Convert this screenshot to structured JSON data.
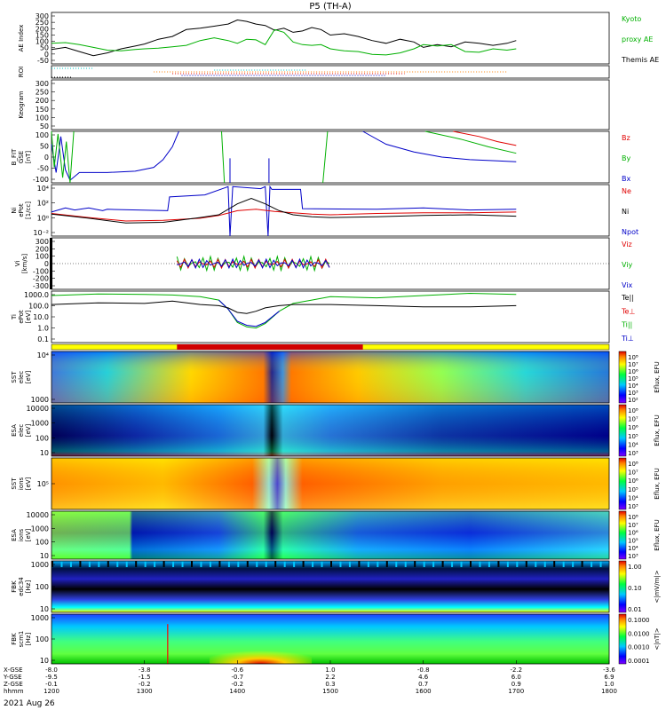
{
  "title": "P5 (TH-A)",
  "date_label": "2021 Aug 26",
  "colors": {
    "black": "#000000",
    "green": "#00b000",
    "red": "#e00000",
    "blue": "#0000c8",
    "orange": "#ff8000",
    "cyan": "#00c8c8",
    "bar_red": "#d00000",
    "bar_yellow": "#ffff00"
  },
  "chart_data": [
    {
      "type": "line",
      "panel": "ae",
      "ylabel": [
        "AE Index"
      ],
      "yticks": [
        "300",
        "250",
        "200",
        "150",
        "100",
        "50",
        "0",
        "-50"
      ],
      "ylim": [
        -50,
        325
      ],
      "legend": [
        {
          "text": "Kyoto",
          "color": "green"
        },
        {
          "text": "proxy AE",
          "color": "green"
        },
        {
          "text": "Themis AE",
          "color": "black"
        }
      ],
      "x": [
        1200,
        1215,
        1230,
        1245,
        1260,
        1275,
        1290,
        1300,
        1315,
        1330,
        1345,
        1360,
        1375,
        1390,
        1400,
        1410,
        1420,
        1430,
        1440,
        1450,
        1460,
        1470,
        1480,
        1490,
        1500,
        1515,
        1530,
        1545,
        1560,
        1575,
        1590,
        1600,
        1615,
        1630,
        1645,
        1660,
        1675,
        1690,
        1700
      ],
      "series": [
        {
          "color": "black",
          "values": [
            55,
            70,
            40,
            10,
            30,
            60,
            80,
            95,
            130,
            150,
            200,
            210,
            225,
            240,
            270,
            260,
            240,
            230,
            195,
            210,
            180,
            190,
            215,
            200,
            160,
            170,
            150,
            120,
            100,
            130,
            110,
            70,
            90,
            75,
            110,
            100,
            85,
            100,
            120
          ]
        },
        {
          "color": "green",
          "values": [
            100,
            105,
            90,
            70,
            50,
            45,
            55,
            60,
            65,
            75,
            85,
            120,
            140,
            120,
            100,
            130,
            125,
            90,
            200,
            180,
            110,
            90,
            85,
            90,
            60,
            45,
            40,
            20,
            15,
            30,
            60,
            90,
            80,
            90,
            40,
            35,
            60,
            50,
            60
          ]
        }
      ]
    },
    {
      "type": "scatter",
      "panel": "roi",
      "ylabel": [
        "ROI"
      ],
      "dotted_rows": [
        {
          "color": "cyan",
          "x_start": 1200,
          "x_end": 1245
        },
        {
          "color": "cyan",
          "x_start": 1375,
          "x_end": 1475
        },
        {
          "color": "orange",
          "x_start": 1310,
          "x_end": 1690
        },
        {
          "color": "red",
          "x_start": 1330,
          "x_end": 1580
        },
        {
          "color": "blue",
          "x_start": 1340,
          "x_end": 1560
        },
        {
          "color": "black",
          "x_start": 1200,
          "x_end": 1222
        }
      ]
    },
    {
      "type": "heatmap",
      "panel": "keogram",
      "ylabel": [
        "Keogram"
      ],
      "yticks": [
        "300",
        "250",
        "200",
        "150",
        "100",
        "50"
      ]
    },
    {
      "type": "line",
      "panel": "bfield",
      "ylabel": [
        "B_FIT",
        "GSE",
        "[nT]"
      ],
      "yticks": [
        "100",
        "50",
        "0",
        "-50",
        "-100"
      ],
      "ylim": [
        -100,
        100
      ],
      "legend": [
        {
          "text": "Bz",
          "color": "red"
        },
        {
          "text": "By",
          "color": "green"
        },
        {
          "text": "Bx",
          "color": "blue"
        }
      ],
      "series": [
        {
          "color": "blue",
          "x": [
            1200,
            1205,
            1210,
            1215,
            1220,
            1230,
            1260,
            1290,
            1310,
            1320,
            1330,
            1337
          ],
          "values": [
            50,
            -60,
            80,
            -50,
            -90,
            -60,
            -60,
            -55,
            -40,
            -10,
            40,
            100
          ]
        },
        {
          "color": "blue",
          "x": [
            1535,
            1560,
            1590,
            1620,
            1650,
            1680,
            1700
          ],
          "values": [
            100,
            50,
            20,
            0,
            -10,
            -15,
            -18
          ]
        },
        {
          "color": "green",
          "x": [
            1200,
            1203,
            1207,
            1212,
            1216,
            1220,
            1224
          ],
          "values": [
            100,
            -40,
            90,
            -80,
            60,
            -100,
            100
          ]
        },
        {
          "color": "green",
          "x": [
            1602,
            1640,
            1670,
            1700
          ],
          "values": [
            100,
            70,
            40,
            15
          ]
        },
        {
          "color": "red",
          "x": [
            1632,
            1660,
            1680,
            1700
          ],
          "values": [
            100,
            80,
            60,
            45
          ]
        },
        {
          "color": "green",
          "x": [
            1383,
            1386
          ],
          "values": [
            100,
            -100
          ]
        },
        {
          "color": "green",
          "x": [
            1492,
            1497
          ],
          "values": [
            -100,
            100
          ]
        },
        {
          "color": "blue",
          "x": [
            1392,
            1392
          ],
          "values": [
            -5,
            -100
          ]
        },
        {
          "color": "blue",
          "x": [
            1434,
            1434
          ],
          "values": [
            -5,
            -100
          ]
        }
      ]
    },
    {
      "type": "line",
      "panel": "density",
      "ylabel": [
        "Ni",
        "ePot",
        "[1/cc]"
      ],
      "yticks": [
        "10⁴",
        "10²",
        "10⁰",
        "10⁻²"
      ],
      "ylim": [
        -2.5,
        5
      ],
      "legend": [
        {
          "text": "Ne",
          "color": "red"
        },
        {
          "text": "Ni",
          "color": "black"
        },
        {
          "text": "Npot",
          "color": "blue"
        }
      ],
      "series": [
        {
          "color": "blue",
          "x": [
            1200,
            1215,
            1225,
            1240,
            1255,
            1260,
            1325,
            1327,
            1365,
            1390,
            1392,
            1395,
            1425,
            1430,
            1433,
            1435,
            1437,
            1468,
            1470,
            1550,
            1600,
            1650,
            1700
          ],
          "values": [
            1,
            1.6,
            1.3,
            1.6,
            1.2,
            1.4,
            1.2,
            3.2,
            3.5,
            4.7,
            -2.5,
            4.7,
            4.4,
            4.7,
            -2.5,
            4.7,
            4.3,
            4.3,
            1.5,
            1.4,
            1.6,
            1.3,
            1.4
          ]
        },
        {
          "color": "red",
          "x": [
            1200,
            1240,
            1280,
            1320,
            1360,
            1380,
            1400,
            1420,
            1440,
            1460,
            1480,
            1500,
            1550,
            1600,
            1650,
            1700
          ],
          "values": [
            0.8,
            0.2,
            -0.3,
            -0.2,
            0.1,
            0.5,
            1.2,
            1.4,
            1.1,
            0.9,
            0.7,
            0.6,
            0.8,
            0.9,
            0.9,
            1.0
          ]
        },
        {
          "color": "black",
          "x": [
            1200,
            1240,
            1280,
            1320,
            1360,
            1380,
            1400,
            1415,
            1430,
            1445,
            1460,
            1480,
            1500,
            1550,
            1600,
            1650,
            1700
          ],
          "values": [
            0.7,
            0.1,
            -0.6,
            -0.5,
            0.2,
            0.6,
            2.2,
            3.0,
            2.2,
            1.2,
            0.6,
            0.3,
            0.2,
            0.3,
            0.5,
            0.6,
            0.4
          ]
        }
      ]
    },
    {
      "type": "line",
      "panel": "velocity",
      "ylabel": [
        "Vi",
        "[km/s]"
      ],
      "yticks": [
        "300",
        "200",
        "100",
        "0",
        "-100",
        "-200",
        "-300"
      ],
      "ylim": [
        -330,
        330
      ],
      "legend": [
        {
          "text": "Viz",
          "color": "red"
        },
        {
          "text": "Viy",
          "color": "green"
        },
        {
          "text": "Vix",
          "color": "blue"
        }
      ],
      "x_start": 1335,
      "x_end": 1500
    },
    {
      "type": "line",
      "panel": "temperature",
      "ylabel": [
        "Ti",
        "ePot",
        "[eV]"
      ],
      "yticks": [
        "1000.0",
        "100.0",
        "10.0",
        "1.0",
        "0.1"
      ],
      "ylim": [
        -1.2,
        3.4
      ],
      "legend": [
        {
          "text": "Te||",
          "color": "black"
        },
        {
          "text": "Te⊥",
          "color": "red"
        },
        {
          "text": "Ti||",
          "color": "green"
        },
        {
          "text": "Ti⊥",
          "color": "blue"
        }
      ],
      "series": [
        {
          "color": "green",
          "x": [
            1200,
            1250,
            1300,
            1330,
            1360,
            1380,
            1390,
            1400,
            1410,
            1420,
            1430,
            1445,
            1460,
            1480,
            1500,
            1550,
            1600,
            1650,
            1700
          ],
          "values": [
            3.0,
            3.15,
            3.1,
            3.05,
            2.9,
            2.6,
            1.8,
            0.6,
            0.2,
            0.1,
            0.5,
            1.6,
            2.3,
            2.6,
            2.9,
            2.8,
            3.0,
            3.2,
            3.1
          ]
        },
        {
          "color": "blue",
          "x": [
            1380,
            1390,
            1400,
            1410,
            1420,
            1430,
            1445
          ],
          "values": [
            2.6,
            1.8,
            0.7,
            0.35,
            0.25,
            0.6,
            1.6
          ]
        },
        {
          "color": "black",
          "x": [
            1200,
            1250,
            1300,
            1330,
            1360,
            1380,
            1390,
            1400,
            1410,
            1420,
            1430,
            1445,
            1460,
            1480,
            1500,
            1550,
            1600,
            1650,
            1700
          ],
          "values": [
            2.2,
            2.35,
            2.3,
            2.5,
            2.2,
            2.1,
            1.9,
            1.5,
            1.4,
            1.6,
            1.9,
            2.1,
            2.2,
            2.2,
            2.2,
            2.1,
            2.0,
            2.0,
            2.1
          ]
        }
      ]
    },
    {
      "type": "heatmap",
      "panel": "sst_e",
      "ylabel": [
        "SST",
        "elec",
        "[eV]"
      ],
      "yticks": [
        "10⁴",
        "1000"
      ]
    },
    {
      "type": "heatmap",
      "panel": "esa_e",
      "ylabel": [
        "ESA",
        "elec",
        "[eV]"
      ],
      "yticks": [
        "10000",
        "1000",
        "100",
        "10"
      ]
    },
    {
      "type": "heatmap",
      "panel": "sst_i",
      "ylabel": [
        "SST",
        "ions",
        "[eV]"
      ],
      "yticks": [
        "10⁵"
      ]
    },
    {
      "type": "heatmap",
      "panel": "esa_i",
      "ylabel": [
        "ESA",
        "ions",
        "[eV]"
      ],
      "yticks": [
        "10000",
        "1000",
        "100",
        "10"
      ]
    },
    {
      "type": "heatmap",
      "panel": "fbk_e",
      "ylabel": [
        "FBK",
        "edc34",
        "[Hz]"
      ],
      "yticks": [
        "1000",
        "100",
        "10"
      ]
    },
    {
      "type": "heatmap",
      "panel": "fbk_b",
      "ylabel": [
        "FBK",
        "scm1",
        "[Hz]"
      ],
      "yticks": [
        "1000",
        "100",
        "10"
      ]
    }
  ],
  "colorbars": [
    {
      "ticks": [
        "10⁸",
        "10⁷",
        "10⁶",
        "10⁵",
        "10⁴",
        "10³",
        "10²"
      ],
      "label": "Eflux, EFU"
    },
    {
      "ticks": [
        "10⁸",
        "10⁷",
        "10⁶",
        "10⁵",
        "10⁴",
        "10³"
      ],
      "label": "Eflux, EFU"
    },
    {
      "ticks": [
        "10⁸",
        "10⁷",
        "10⁶",
        "10⁵",
        "10⁴",
        "10³"
      ],
      "label": "Eflux, EFU"
    },
    {
      "ticks": [
        "10⁸",
        "10⁷",
        "10⁶",
        "10⁵",
        "10⁴",
        "10³"
      ],
      "label": "Eflux, EFU"
    },
    {
      "ticks": [
        "1.00",
        "0.10",
        "0.01"
      ],
      "label": "<|mV/m|>"
    },
    {
      "ticks": [
        "0.1000",
        "0.0100",
        "0.0010",
        "0.0001"
      ],
      "label": "<|nT|>"
    }
  ],
  "orbit_rows": [
    {
      "label": "X-GSE",
      "values": [
        "-8.0",
        "-3.8",
        "-0.6",
        "1.0",
        "-0.8",
        "-2.2",
        "-3.6"
      ]
    },
    {
      "label": "Y-GSE",
      "values": [
        "-9.5",
        "-1.5",
        "-0.7",
        "2.2",
        "4.6",
        "6.0",
        "6.9"
      ]
    },
    {
      "label": "Z-GSE",
      "values": [
        "-0.1",
        "-0.2",
        "-0.2",
        "0.3",
        "0.7",
        "0.9",
        "1.0"
      ]
    },
    {
      "label": "hhmm",
      "values": [
        "1200",
        "1300",
        "1400",
        "1500",
        "1600",
        "1700",
        "1800"
      ]
    }
  ],
  "x_range": [
    1200,
    1800
  ]
}
